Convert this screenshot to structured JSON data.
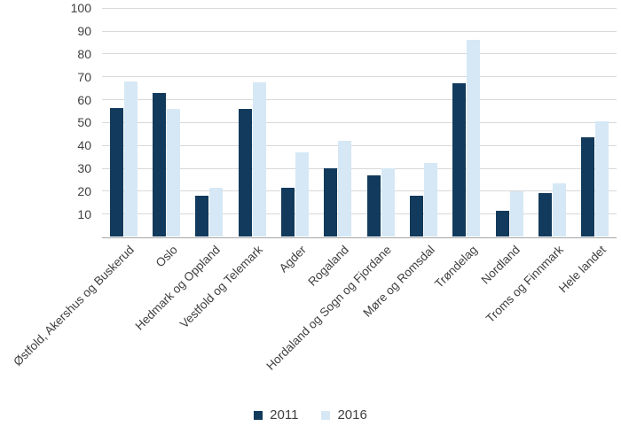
{
  "chart_data": {
    "type": "bar",
    "title": "",
    "xlabel": "",
    "ylabel": "",
    "categories": [
      "Østfold, Akershus og Buskerud",
      "Oslo",
      "Hedmark og Oppland",
      "Vestfold og Telemark",
      "Agder",
      "Rogaland",
      "Hordaland og Sogn og Fjordane",
      "Møre og Romsdal",
      "Trøndelag",
      "Nordland",
      "Troms og Finnmark",
      "Hele landet"
    ],
    "series": [
      {
        "name": "2011",
        "color": "#123a5c",
        "values": [
          56.5,
          63,
          18,
          56,
          21.5,
          30,
          27,
          18,
          67,
          11.5,
          19,
          43.5
        ]
      },
      {
        "name": "2016",
        "color": "#d6e8f5",
        "values": [
          68,
          56,
          21.5,
          67.5,
          37,
          42,
          30,
          32.5,
          86,
          20,
          23.5,
          50.5
        ]
      }
    ],
    "ylim": [
      0,
      100
    ],
    "yticks": [
      100,
      90,
      80,
      70,
      60,
      50,
      40,
      30,
      20,
      10
    ],
    "grid": "horizontal",
    "gridline_color": "#d9d9d9",
    "axis_line_color": "#a6a6a6",
    "text_color": "#404040",
    "legend_position": "bottom"
  }
}
